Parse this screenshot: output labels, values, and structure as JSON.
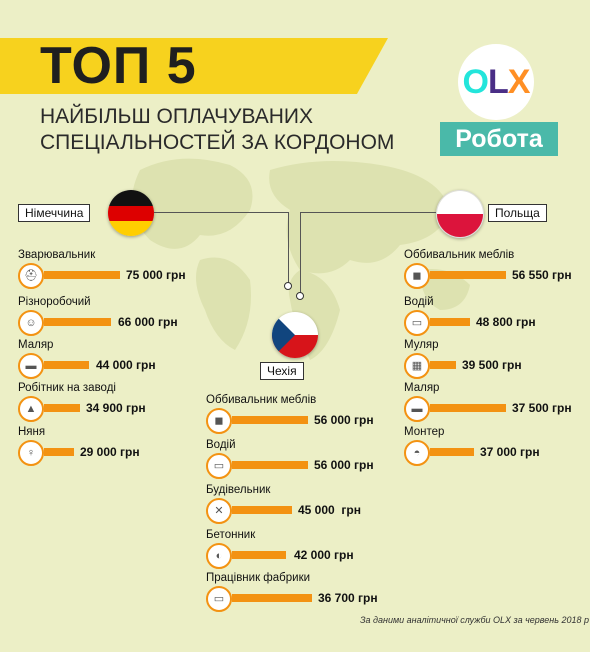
{
  "header": {
    "title": "ТОП 5",
    "subtitle_line1": "НАЙБІЛЬШ ОПЛАЧУВАНИХ",
    "subtitle_line2": "СПЕЦІАЛЬНОСТЕЙ ЗА КОРДОНОМ"
  },
  "logo": {
    "o": "O",
    "l": "L",
    "x": "X",
    "robota": "Робота"
  },
  "germany": {
    "label": "Німеччина",
    "jobs": [
      {
        "name": "Зварювальник",
        "salary": "75 000 грн",
        "value": 75000,
        "icon": "welder-icon"
      },
      {
        "name": "Різноробочий",
        "salary": "66 000 грн",
        "value": 66000,
        "icon": "worker-icon"
      },
      {
        "name": "Маляр",
        "salary": "44 000 грн",
        "value": 44000,
        "icon": "paint-roller-icon"
      },
      {
        "name": "Робітник на заводі",
        "salary": "34 900 грн",
        "value": 34900,
        "icon": "factory-icon"
      },
      {
        "name": "Няня",
        "salary": "29 000 грн",
        "value": 29000,
        "icon": "nanny-icon"
      }
    ]
  },
  "poland": {
    "label": "Польща",
    "jobs": [
      {
        "name": "Оббивальник меблів",
        "salary": "56 550 грн",
        "value": 56550,
        "icon": "upholsterer-icon"
      },
      {
        "name": "Водій",
        "salary": "48 800 грн",
        "value": 48800,
        "icon": "car-icon"
      },
      {
        "name": "Муляр",
        "salary": "39 500 грн",
        "value": 39500,
        "icon": "bricks-icon"
      },
      {
        "name": "Маляр",
        "salary": "37 500 грн",
        "value": 37500,
        "icon": "paint-roller-icon"
      },
      {
        "name": "Монтер",
        "salary": "37 000 грн",
        "value": 37000,
        "icon": "hard-hat-icon"
      }
    ]
  },
  "czech": {
    "label": "Чехія",
    "jobs": [
      {
        "name": "Оббивальник меблів",
        "salary": "56 000 грн",
        "value": 56000,
        "icon": "upholsterer-icon"
      },
      {
        "name": "Водій",
        "salary": "56 000 грн",
        "value": 56000,
        "icon": "car-icon"
      },
      {
        "name": "Будівельник",
        "salary": "45 000  грн",
        "value": 45000,
        "icon": "tools-icon"
      },
      {
        "name": "Бетонник",
        "salary": "42 000 грн",
        "value": 42000,
        "icon": "concrete-mixer-icon"
      },
      {
        "name": "Працівник фабрики",
        "salary": "36 700 грн",
        "value": 36700,
        "icon": "conveyor-icon"
      }
    ]
  },
  "footnote": "За даними аналітичної служби OLX за червень 2018 р",
  "colors": {
    "bar": "#f39212",
    "banner": "#f7d21e",
    "background": "#ecefc6",
    "robota": "#4ab9a9"
  }
}
